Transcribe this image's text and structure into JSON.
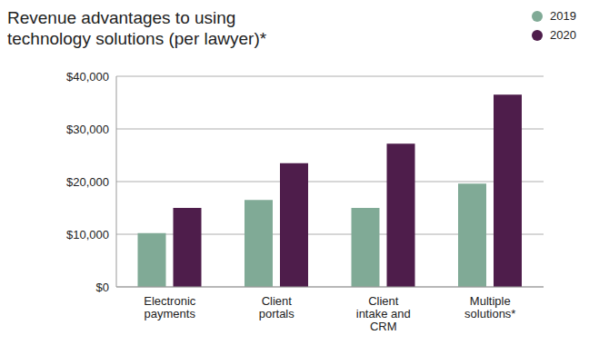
{
  "chart_data": {
    "type": "bar",
    "title": "Revenue advantages to using technology solutions (per lawyer)*",
    "categories": [
      "Electronic payments",
      "Client portals",
      "Client intake and CRM",
      "Multiple solutions*"
    ],
    "series": [
      {
        "name": "2019",
        "color": "#80aa96",
        "values": [
          10200,
          16500,
          15000,
          19600
        ]
      },
      {
        "name": "2020",
        "color": "#4e1d4b",
        "values": [
          15000,
          23500,
          27200,
          36500
        ]
      }
    ],
    "ylim": [
      0,
      40000
    ],
    "yticks": [
      {
        "value": 0,
        "label": "$0"
      },
      {
        "value": 10000,
        "label": "$10,000"
      },
      {
        "value": 20000,
        "label": "$20,000"
      },
      {
        "value": 30000,
        "label": "$30,000"
      },
      {
        "value": 40000,
        "label": "$40,000"
      }
    ],
    "grid": true,
    "legend": "top-right"
  }
}
